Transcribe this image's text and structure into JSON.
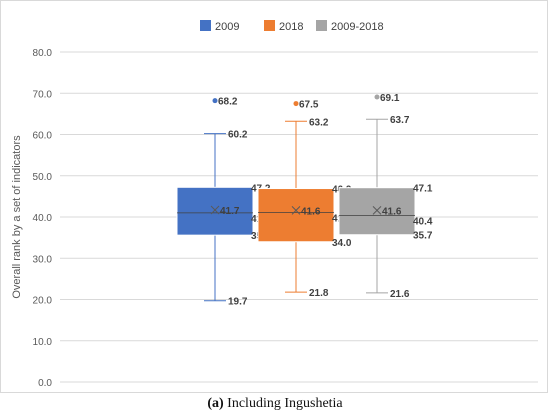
{
  "chart_data": {
    "type": "box",
    "ylabel": "Overall rank by a set of indicators",
    "ylim": [
      0,
      80
    ],
    "yticks": [
      "0.0",
      "10.0",
      "20.0",
      "30.0",
      "40.0",
      "50.0",
      "60.0",
      "70.0",
      "80.0"
    ],
    "grid": true,
    "legend_position": "top",
    "series": [
      {
        "name": "2009",
        "color": "#4472C4",
        "min": 19.7,
        "q1": 35.6,
        "median": 41.0,
        "mean": 41.7,
        "q3": 47.2,
        "max": 60.2,
        "outliers": [
          68.2
        ],
        "labels": {
          "outlier": "68.2",
          "max": "60.2",
          "q3": "47.2",
          "mean": "41.7",
          "median": "41.0",
          "q1": "35.6",
          "min": "19.7"
        }
      },
      {
        "name": "2018",
        "color": "#ED7D31",
        "min": 21.8,
        "q1": 34.0,
        "median": 41.1,
        "mean": 41.6,
        "q3": 46.9,
        "max": 63.2,
        "outliers": [
          67.5
        ],
        "labels": {
          "outlier": "67.5",
          "max": "63.2",
          "q3": "46.9",
          "mean": "41.6",
          "median": "41.1",
          "q1": "34.0",
          "min": "21.8"
        }
      },
      {
        "name": "2009-2018",
        "color": "#A5A5A5",
        "min": 21.6,
        "q1": 35.7,
        "median": 40.4,
        "mean": 41.6,
        "q3": 47.1,
        "max": 63.7,
        "outliers": [
          69.1
        ],
        "labels": {
          "outlier": "69.1",
          "max": "63.7",
          "q3": "47.1",
          "mean": "41.6",
          "median": "40.4",
          "q1": "35.7",
          "min": "21.6"
        }
      }
    ]
  },
  "caption": {
    "label": "(a)",
    "text": " Including Ingushetia"
  }
}
